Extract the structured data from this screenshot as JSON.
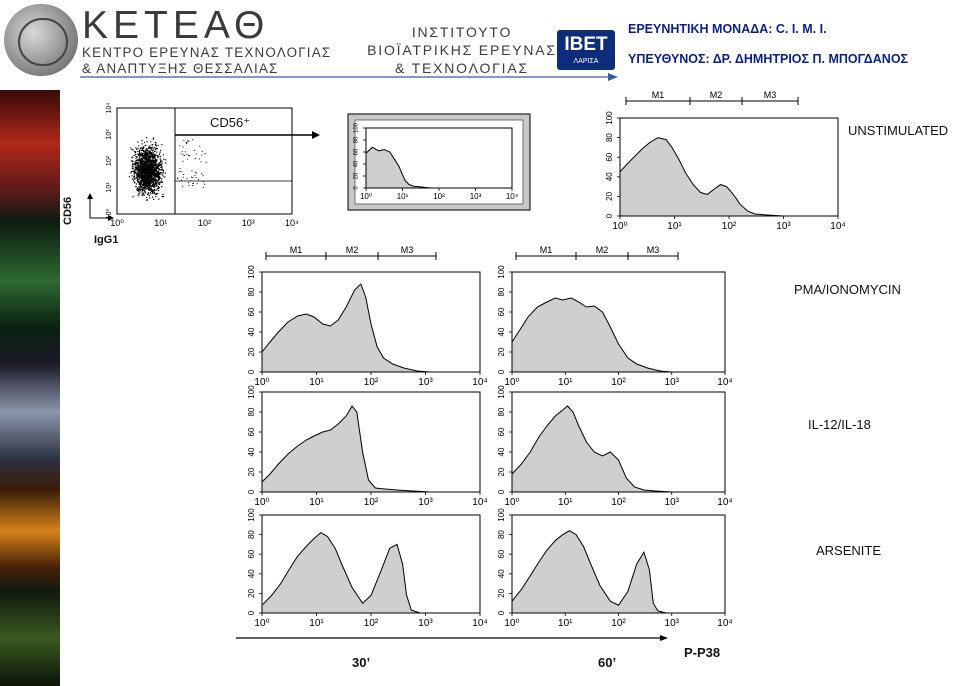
{
  "header": {
    "brand": "ΚΕΤΕΑΘ",
    "brand_sub_1": "ΚΕΝΤΡΟ ΕΡΕΥΝΑΣ ΤΕΧΝΟΛΟΓΙΑΣ",
    "brand_sub_2": "& ΑΝΑΠΤΥΞΗΣ ΘΕΣΣΑΛΙΑΣ",
    "institute_1": "ΙΝΣΤΙΤΟΥΤΟ",
    "institute_2": "ΒΙΟΪΑΤΡΙΚΗΣ ΕΡΕΥΝΑΣ",
    "institute_3": "& ΤΕΧΝΟΛΟΓΙΑΣ",
    "ibet_logo": "IBET",
    "ibet_sub": "ΛΑΡΙΣΑ",
    "research_unit": "ΕΡΕΥΝΗΤΙΚΗ ΜΟΝΑΔΑ: C. I. M. I.",
    "responsible": "ΥΠΕΥΘΥΝΟΣ: ΔΡ. ΔΗΜΗΤΡΙΟΣ Π. ΜΠΟΓΔΑΝΟΣ"
  },
  "gate": {
    "label": "CD56⁺",
    "y_axis": "CD56",
    "x_axis": "IgG1"
  },
  "conditions": {
    "unstimulated": "UNSTIMULATED",
    "pma": "PMA/IONOMYCIN",
    "il": "IL-12/IL-18",
    "arsenite": "ARSENITE"
  },
  "bottom": {
    "t30": "30’",
    "t60": "60’",
    "marker": "P-P38"
  },
  "chart_data": [
    {
      "type": "scatter",
      "name": "dot-plot",
      "xscale": "log",
      "yscale": "log",
      "xlim": [
        1,
        10000
      ],
      "ylim": [
        1,
        10000
      ],
      "x_ticks": [
        "10⁰",
        "10¹",
        "10²",
        "10³",
        "10⁴"
      ],
      "y_ticks": [
        "10⁰",
        "10¹",
        "10²",
        "10³",
        "10⁴"
      ],
      "xlabel": "IgG1",
      "ylabel": "CD56"
    },
    {
      "type": "area",
      "name": "inset-histogram",
      "xscale": "log",
      "xlim": [
        1,
        10000
      ],
      "ylim": [
        0,
        100
      ],
      "x_ticks": [
        "10⁰",
        "10¹",
        "10²",
        "10³",
        "10⁴"
      ],
      "y_ticks": [
        "0",
        "20",
        "40",
        "60",
        "80",
        "100"
      ],
      "x": [
        1,
        1.5,
        2.2,
        3.2,
        4.5,
        6,
        8,
        10,
        12,
        15,
        20,
        30,
        40,
        60,
        100,
        10000
      ],
      "y": [
        58,
        68,
        62,
        64,
        60,
        48,
        36,
        22,
        12,
        6,
        3,
        2,
        1,
        0,
        0,
        0
      ]
    },
    {
      "type": "area",
      "name": "unstimulated",
      "xscale": "log",
      "xlim": [
        1,
        10000
      ],
      "ylim": [
        0,
        100
      ],
      "x_ticks": [
        "10⁰",
        "10¹",
        "10²",
        "10³",
        "10⁴"
      ],
      "y_ticks": [
        "0",
        "20",
        "40",
        "60",
        "80",
        "100"
      ],
      "markers": [
        "M1",
        "M2",
        "M3"
      ],
      "x": [
        1,
        1.3,
        1.8,
        2.5,
        3.5,
        5,
        7,
        9,
        12,
        16,
        22,
        30,
        40,
        55,
        70,
        90,
        120,
        160,
        220,
        300,
        500,
        1000,
        10000
      ],
      "y": [
        45,
        52,
        60,
        68,
        75,
        80,
        78,
        70,
        58,
        44,
        32,
        24,
        22,
        28,
        32,
        30,
        22,
        12,
        5,
        2,
        1,
        0,
        0
      ]
    },
    {
      "type": "area",
      "name": "pma-30",
      "xscale": "log",
      "xlim": [
        1,
        10000
      ],
      "ylim": [
        0,
        100
      ],
      "x_ticks": [
        "10⁰",
        "10¹",
        "10²",
        "10³",
        "10⁴"
      ],
      "y_ticks": [
        "0",
        "20",
        "40",
        "60",
        "80",
        "100"
      ],
      "markers": [
        "M1",
        "M2",
        "M3"
      ],
      "x": [
        1,
        1.4,
        2,
        3,
        4.5,
        6.5,
        9,
        13,
        18,
        25,
        35,
        50,
        65,
        80,
        100,
        130,
        170,
        250,
        400,
        700,
        1200,
        10000
      ],
      "y": [
        20,
        30,
        40,
        50,
        56,
        58,
        55,
        48,
        46,
        52,
        65,
        82,
        88,
        75,
        48,
        25,
        14,
        8,
        4,
        1,
        0,
        0
      ]
    },
    {
      "type": "area",
      "name": "pma-60",
      "xscale": "log",
      "xlim": [
        1,
        10000
      ],
      "ylim": [
        0,
        100
      ],
      "x_ticks": [
        "10⁰",
        "10¹",
        "10²",
        "10³",
        "10⁴"
      ],
      "y_ticks": [
        "0",
        "20",
        "40",
        "60",
        "80",
        "100"
      ],
      "markers": [
        "M1",
        "M2",
        "M3"
      ],
      "x": [
        1,
        1.4,
        2,
        3,
        4.5,
        6.5,
        9,
        13,
        18,
        25,
        35,
        50,
        70,
        100,
        150,
        220,
        350,
        600,
        1000,
        10000
      ],
      "y": [
        30,
        42,
        55,
        65,
        70,
        74,
        72,
        74,
        70,
        65,
        66,
        60,
        45,
        28,
        14,
        8,
        4,
        1,
        0,
        0
      ]
    },
    {
      "type": "area",
      "name": "il-30",
      "xscale": "log",
      "xlim": [
        1,
        10000
      ],
      "ylim": [
        0,
        100
      ],
      "x_ticks": [
        "10⁰",
        "10¹",
        "10²",
        "10³",
        "10⁴"
      ],
      "y_ticks": [
        "0",
        "20",
        "40",
        "60",
        "80",
        "100"
      ],
      "x": [
        1,
        1.4,
        2,
        3,
        4.5,
        6.5,
        9,
        13,
        18,
        25,
        35,
        45,
        55,
        70,
        90,
        120,
        180,
        300,
        600,
        1200,
        10000
      ],
      "y": [
        10,
        18,
        28,
        38,
        46,
        52,
        56,
        60,
        62,
        68,
        76,
        86,
        80,
        40,
        12,
        4,
        3,
        2,
        1,
        0,
        0
      ]
    },
    {
      "type": "area",
      "name": "il-60",
      "xscale": "log",
      "xlim": [
        1,
        10000
      ],
      "ylim": [
        0,
        100
      ],
      "x_ticks": [
        "10⁰",
        "10¹",
        "10²",
        "10³",
        "10⁴"
      ],
      "y_ticks": [
        "0",
        "20",
        "40",
        "60",
        "80",
        "100"
      ],
      "x": [
        1,
        1.5,
        2.2,
        3.2,
        4.5,
        6.5,
        9,
        11,
        14,
        18,
        25,
        35,
        50,
        70,
        100,
        140,
        200,
        300,
        500,
        1000,
        10000
      ],
      "y": [
        18,
        28,
        40,
        55,
        66,
        76,
        82,
        86,
        80,
        66,
        50,
        40,
        36,
        40,
        32,
        14,
        5,
        2,
        1,
        0,
        0
      ]
    },
    {
      "type": "area",
      "name": "arsenite-30",
      "xscale": "log",
      "xlim": [
        1,
        10000
      ],
      "ylim": [
        0,
        100
      ],
      "x_ticks": [
        "10⁰",
        "10¹",
        "10²",
        "10³",
        "10⁴"
      ],
      "y_ticks": [
        "0",
        "20",
        "40",
        "60",
        "80",
        "100"
      ],
      "x": [
        1,
        1.5,
        2.2,
        3.2,
        4.5,
        6.5,
        9,
        12,
        16,
        22,
        30,
        45,
        70,
        100,
        150,
        220,
        300,
        380,
        450,
        550,
        800,
        10000
      ],
      "y": [
        8,
        18,
        30,
        45,
        58,
        68,
        76,
        82,
        78,
        66,
        48,
        26,
        10,
        18,
        42,
        66,
        70,
        50,
        18,
        3,
        0,
        0
      ]
    },
    {
      "type": "area",
      "name": "arsenite-60",
      "xscale": "log",
      "xlim": [
        1,
        10000
      ],
      "ylim": [
        0,
        100
      ],
      "x_ticks": [
        "10⁰",
        "10¹",
        "10²",
        "10³",
        "10⁴"
      ],
      "y_ticks": [
        "0",
        "20",
        "40",
        "60",
        "80",
        "100"
      ],
      "x": [
        1,
        1.5,
        2.2,
        3.2,
        4.5,
        6.5,
        9,
        12,
        16,
        22,
        30,
        45,
        70,
        100,
        150,
        220,
        300,
        380,
        450,
        550,
        800,
        10000
      ],
      "y": [
        12,
        24,
        38,
        52,
        64,
        74,
        80,
        84,
        80,
        68,
        50,
        28,
        12,
        8,
        22,
        50,
        62,
        44,
        10,
        2,
        0,
        0
      ]
    }
  ]
}
